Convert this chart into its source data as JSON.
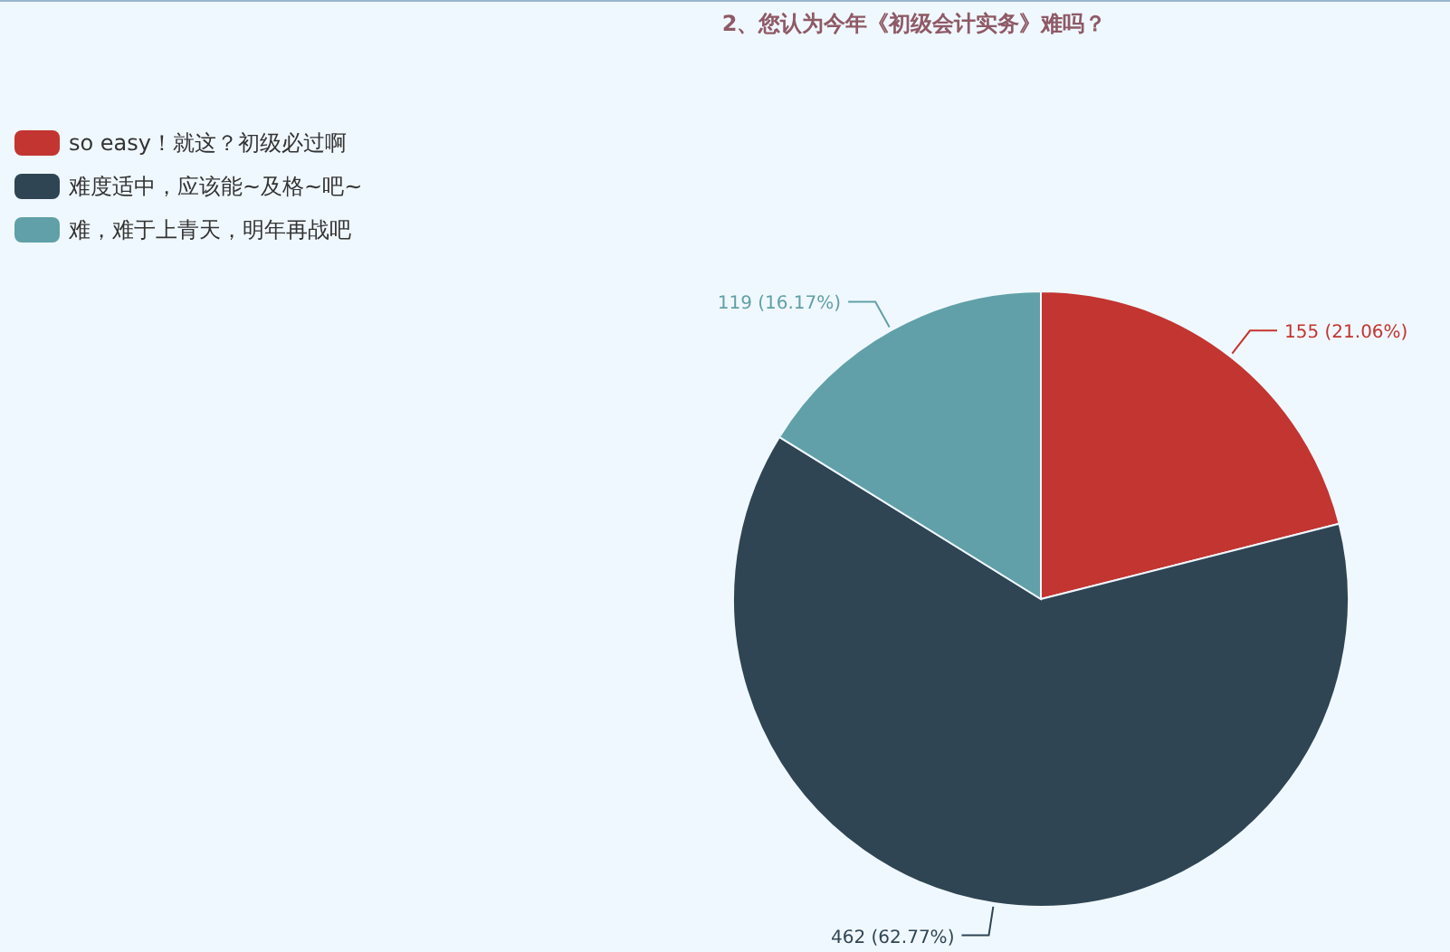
{
  "chart_data": {
    "type": "pie",
    "title": "2、您认为今年《初级会计实务》难吗？",
    "categories": [
      "so easy！就这？初级必过啊",
      "难度适中，应该能~及格~吧~",
      "难，难于上青天，明年再战吧"
    ],
    "values": [
      155,
      462,
      119
    ],
    "colors": [
      "#c23531",
      "#2f4554",
      "#61a0a8"
    ],
    "value_labels": [
      "155 (21.06%)",
      "462 (62.77%)",
      "119 (16.17%)"
    ],
    "legend": "top left"
  }
}
